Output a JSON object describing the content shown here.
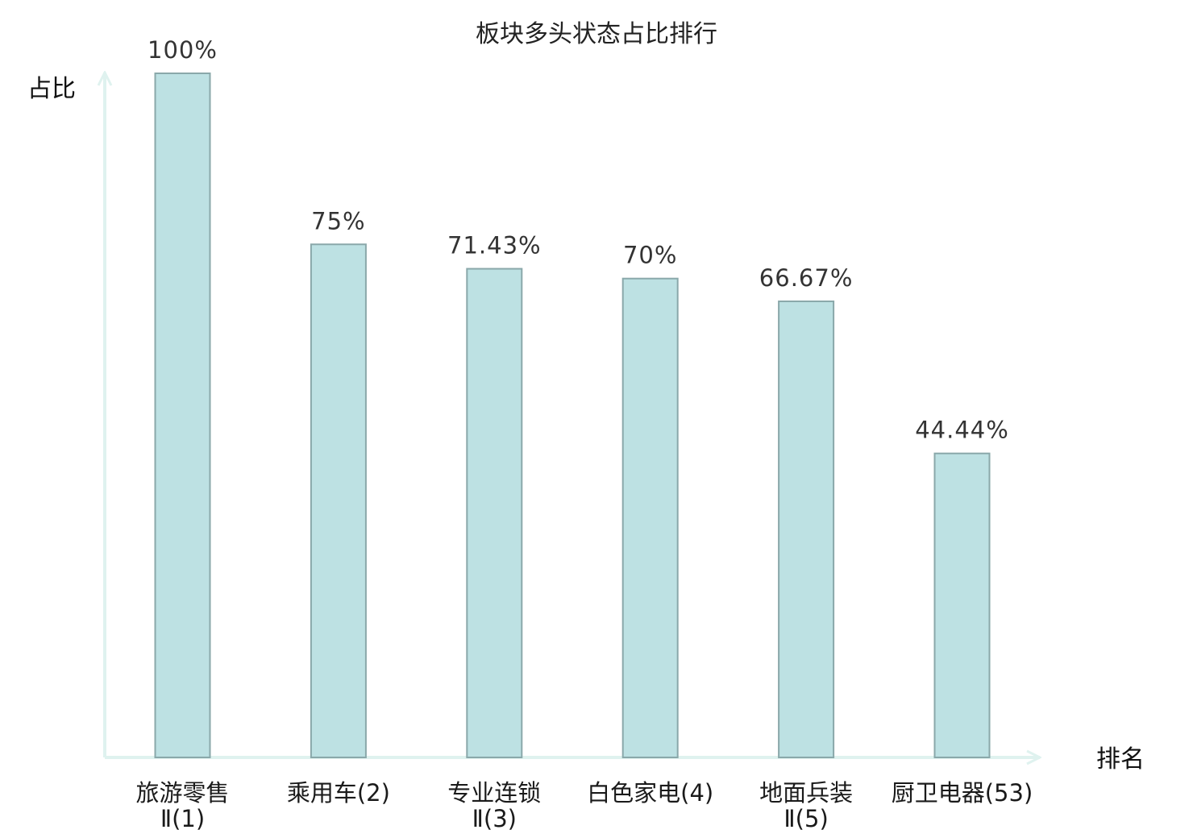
{
  "chart_data": {
    "type": "bar",
    "title": "板块多头状态占比排行",
    "xlabel": "排名",
    "ylabel": "占比",
    "ylim": [
      0,
      100
    ],
    "grid": false,
    "categories": [
      {
        "line1": "旅游零售",
        "line2": "Ⅱ(1)"
      },
      {
        "line1": "乘用车(2)",
        "line2": ""
      },
      {
        "line1": "专业连锁",
        "line2": "Ⅱ(3)"
      },
      {
        "line1": "白色家电(4)",
        "line2": ""
      },
      {
        "line1": "地面兵装",
        "line2": "Ⅱ(5)"
      },
      {
        "line1": "厨卫电器(53)",
        "line2": ""
      }
    ],
    "values": [
      100,
      75,
      71.43,
      70,
      66.67,
      44.44
    ],
    "value_labels": [
      "100%",
      "75%",
      "71.43%",
      "70%",
      "66.67%",
      "44.44%"
    ],
    "highlight_index": 5,
    "colors": {
      "bar_fill": "#bde1e3",
      "bar_stroke": "#8aa8aa",
      "axis": "#dff2ef",
      "highlight_text": "#e8141c",
      "text": "#1a1a1a"
    }
  }
}
